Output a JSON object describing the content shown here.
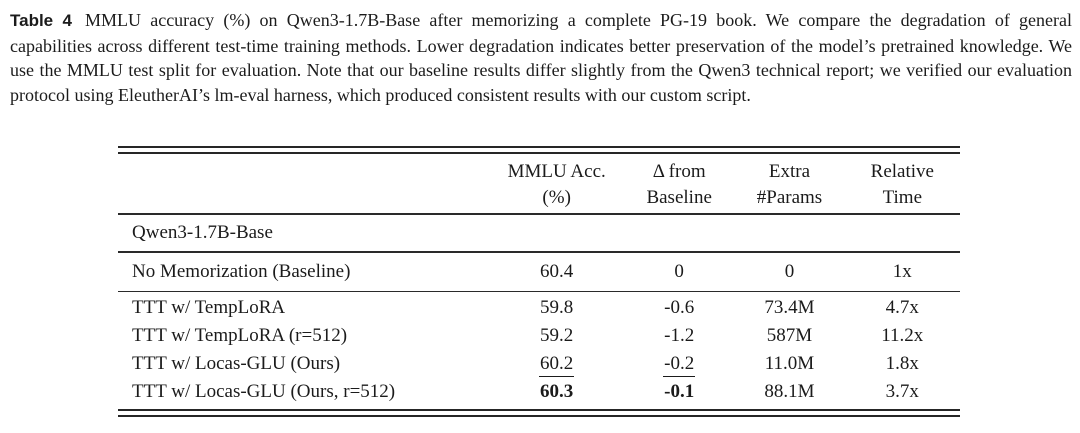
{
  "page": {
    "background_color": "#ffffff",
    "text_color": "#1b1b1b"
  },
  "caption": {
    "label": "Table 4",
    "text": "MMLU accuracy (%) on Qwen3-1.7B-Base after memorizing a complete PG-19 book. We compare the degradation of general capabilities across different test-time training methods. Lower degradation indicates better preservation of the model’s pretrained knowledge. We use the MMLU test split for evaluation. Note that our baseline results differ slightly from the Qwen3 technical report; we verified our evaluation protocol using EleutherAI’s lm-eval harness, which produced consistent results with our custom script."
  },
  "table": {
    "headers": {
      "method": "",
      "col1_line1": "MMLU Acc.",
      "col1_line2": "(%)",
      "col2_line1": "Δ from",
      "col2_line2": "Baseline",
      "col3_line1": "Extra",
      "col3_line2": "#Params",
      "col4_line1": "Relative",
      "col4_line2": "Time"
    },
    "section_header": "Qwen3-1.7B-Base",
    "baseline_row": {
      "method": "No Memorization (Baseline)",
      "mmlu_acc": "60.4",
      "delta": "0",
      "extra_params": "0",
      "relative_time": "1x"
    },
    "rows": [
      {
        "method": "TTT w/ TempLoRA",
        "mmlu_acc": "59.8",
        "delta": "-0.6",
        "extra_params": "73.4M",
        "relative_time": "4.7x"
      },
      {
        "method": "TTT w/ TempLoRA (r=512)",
        "mmlu_acc": "59.2",
        "delta": "-1.2",
        "extra_params": "587M",
        "relative_time": "11.2x"
      },
      {
        "method": "TTT w/ Locas-GLU (Ours)",
        "mmlu_acc": "60.2",
        "delta": "-0.2",
        "extra_params": "11.0M",
        "relative_time": "1.8x"
      },
      {
        "method": "TTT w/ Locas-GLU (Ours, r=512)",
        "mmlu_acc": "60.3",
        "delta": "-0.1",
        "extra_params": "88.1M",
        "relative_time": "3.7x"
      }
    ]
  }
}
